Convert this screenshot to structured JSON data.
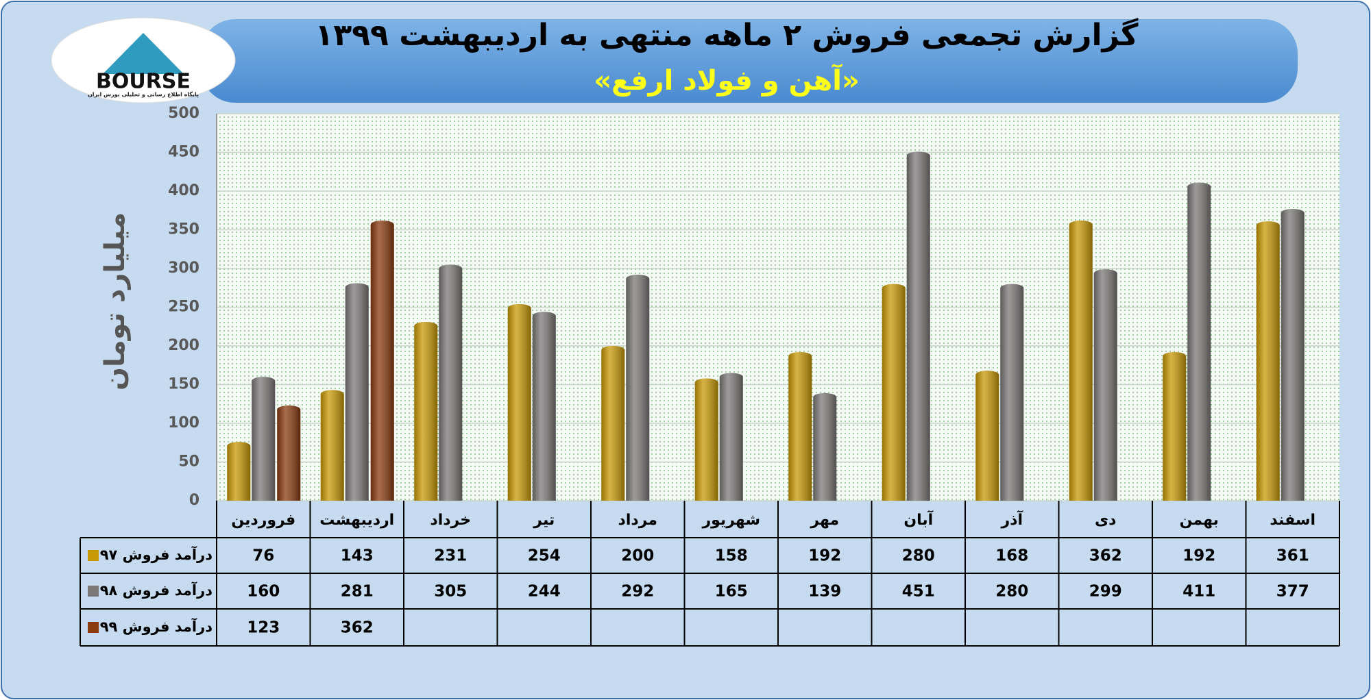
{
  "logo": {
    "text": "BOURSE",
    "tagline": "پایگاه اطلاع رسانی و تحلیلی بورس ایران"
  },
  "chart_data": {
    "type": "bar",
    "title": "گزارش تجمعی فروش ۲ ماهه منتهی به اردیبهشت ۱۳۹۹",
    "subtitle": "«آهن و فولاد ارفع»",
    "y_label": "میلیارد تومان",
    "categories": [
      "فروردین",
      "اردیبهشت",
      "خرداد",
      "تیر",
      "مرداد",
      "شهریور",
      "مهر",
      "آبان",
      "آذر",
      "دی",
      "بهمن",
      "اسفند"
    ],
    "series": [
      {
        "name": "درآمد فروش ۹۷",
        "color": "#c99a06",
        "values": [
          76,
          143,
          231,
          254,
          200,
          158,
          192,
          280,
          168,
          362,
          192,
          361
        ]
      },
      {
        "name": "درآمد فروش ۹۸",
        "color": "#7c7878",
        "values": [
          160,
          281,
          305,
          244,
          292,
          165,
          139,
          451,
          280,
          299,
          411,
          377
        ]
      },
      {
        "name": "درآمد فروش ۹۹",
        "color": "#8a3b10",
        "values": [
          123,
          362,
          null,
          null,
          null,
          null,
          null,
          null,
          null,
          null,
          null,
          null
        ]
      }
    ],
    "ylim": [
      0,
      500
    ],
    "yticks": [
      0,
      50,
      100,
      150,
      200,
      250,
      300,
      350,
      400,
      450,
      500
    ],
    "grid": true
  }
}
